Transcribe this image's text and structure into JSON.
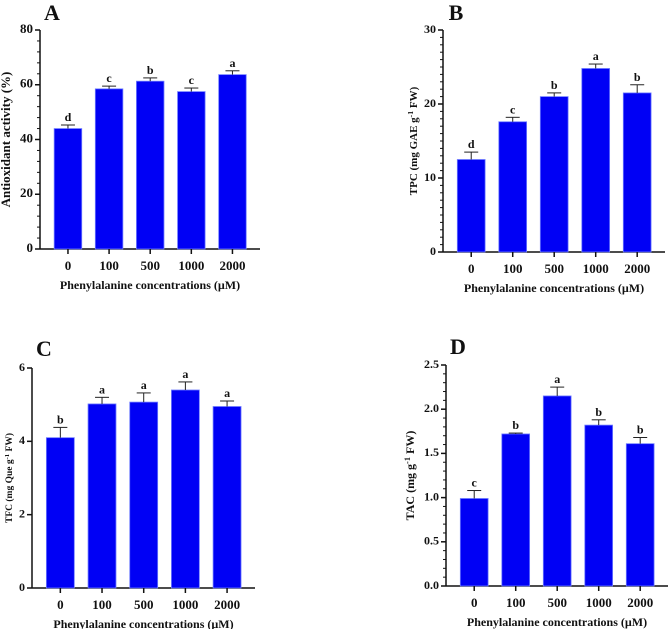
{
  "chart_data": [
    {
      "type": "bar",
      "panel_label": "A",
      "categories": [
        "0",
        "100",
        "500",
        "1000",
        "2000"
      ],
      "values": [
        44.0,
        58.5,
        61.3,
        57.5,
        63.7
      ],
      "errors": [
        1.3,
        1.0,
        1.2,
        1.3,
        1.4
      ],
      "letters": [
        "d",
        "c",
        "b",
        "c",
        "a"
      ],
      "xlabel": "Phenylalanine concentrations (µM)",
      "ylabel": {
        "pre": "Antioxidant activity (%)",
        "sup": "",
        "post": ""
      },
      "ylim": [
        0,
        80
      ],
      "yticks": [
        "0",
        "20",
        "40",
        "60",
        "80"
      ],
      "minor_per_major": 5,
      "bar_color": "#0000f5"
    },
    {
      "type": "bar",
      "panel_label": "B",
      "categories": [
        "0",
        "100",
        "500",
        "1000",
        "2000"
      ],
      "values": [
        12.5,
        17.6,
        21.0,
        24.8,
        21.5
      ],
      "errors": [
        1.0,
        0.6,
        0.5,
        0.6,
        1.1
      ],
      "letters": [
        "d",
        "c",
        "b",
        "a",
        "b"
      ],
      "xlabel": "Phenylalanine concentrations (µM)",
      "ylabel": {
        "pre": "TPC (mg GAE g",
        "sup": "-1",
        "post": " FW)"
      },
      "ylim": [
        0,
        30
      ],
      "yticks": [
        "0",
        "10",
        "20",
        "30"
      ],
      "minor_per_major": 10,
      "bar_color": "#0000f5"
    },
    {
      "type": "bar",
      "panel_label": "C",
      "categories": [
        "0",
        "100",
        "500",
        "1000",
        "2000"
      ],
      "values": [
        4.1,
        5.02,
        5.07,
        5.4,
        4.95
      ],
      "errors": [
        0.28,
        0.18,
        0.25,
        0.22,
        0.15
      ],
      "letters": [
        "b",
        "a",
        "a",
        "a",
        "a"
      ],
      "xlabel": "Phenylalanine concentrations (µM)",
      "ylabel": {
        "pre": "TFC (mg Que g",
        "sup": "-1",
        "post": " FW)"
      },
      "ylim": [
        0,
        6
      ],
      "yticks": [
        "0",
        "2",
        "4",
        "6"
      ],
      "minor_per_major": 1,
      "bar_color": "#0000f5"
    },
    {
      "type": "bar",
      "panel_label": "D",
      "categories": [
        "0",
        "100",
        "500",
        "1000",
        "2000"
      ],
      "values": [
        0.99,
        1.72,
        2.15,
        1.82,
        1.61
      ],
      "errors": [
        0.09,
        0.01,
        0.1,
        0.06,
        0.07
      ],
      "letters": [
        "c",
        "b",
        "a",
        "b",
        "b"
      ],
      "xlabel": "Phenylalanine concentrations (µM)",
      "ylabel": {
        "pre": "TAC (mg g",
        "sup": "-1",
        "post": " FW)"
      },
      "ylim": [
        0,
        2.5
      ],
      "yticks": [
        "0.0",
        "0.5",
        "1.0",
        "1.5",
        "2.0",
        "2.5"
      ],
      "minor_per_major": 5,
      "bar_color": "#0000f5"
    }
  ]
}
